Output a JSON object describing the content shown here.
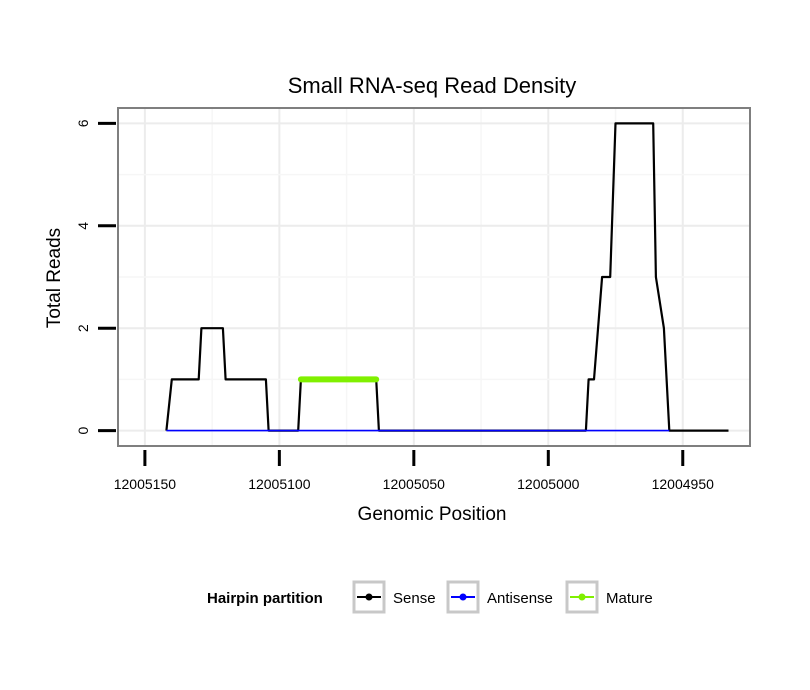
{
  "chart_data": {
    "type": "line",
    "title": "Small RNA-seq Read Density",
    "xlabel": "Genomic Position",
    "ylabel": "Total Reads",
    "x_reversed": true,
    "xlim": [
      12005160,
      12004925
    ],
    "ylim": [
      -0.3,
      6.3
    ],
    "x_ticks": [
      12005150,
      12005100,
      12005050,
      12005000,
      12004950
    ],
    "x_tick_labels": [
      "12005150",
      "12005100",
      "12005050",
      "12005000",
      "12004950"
    ],
    "y_ticks": [
      0,
      2,
      4,
      6
    ],
    "y_tick_labels": [
      "0",
      "2",
      "4",
      "6"
    ],
    "grid": true,
    "legend": {
      "title": "Hairpin partition",
      "position": "bottom",
      "entries": [
        "Sense",
        "Antisense",
        "Mature"
      ]
    },
    "series": [
      {
        "name": "Sense",
        "color": "#000000",
        "x": [
          12005142,
          12005140,
          12005130,
          12005129,
          12005121,
          12005120,
          12005105,
          12005104,
          12005093,
          12005092,
          12005064,
          12005063,
          12004986,
          12004985,
          12004983,
          12004980,
          12004977,
          12004975,
          12004961,
          12004960,
          12004957,
          12004955,
          12004945,
          12004933
        ],
        "y": [
          0,
          1,
          1,
          2,
          2,
          1,
          1,
          0,
          0,
          1,
          1,
          0,
          0,
          1,
          1,
          3,
          3,
          6,
          6,
          3,
          2,
          0,
          0,
          0
        ]
      },
      {
        "name": "Antisense",
        "color": "#0000ff",
        "x": [
          12005142,
          12004955
        ],
        "y": [
          0,
          0
        ]
      },
      {
        "name": "Mature",
        "color": "#80f000",
        "x": [
          12005092,
          12005064
        ],
        "y": [
          1,
          1
        ]
      }
    ]
  }
}
